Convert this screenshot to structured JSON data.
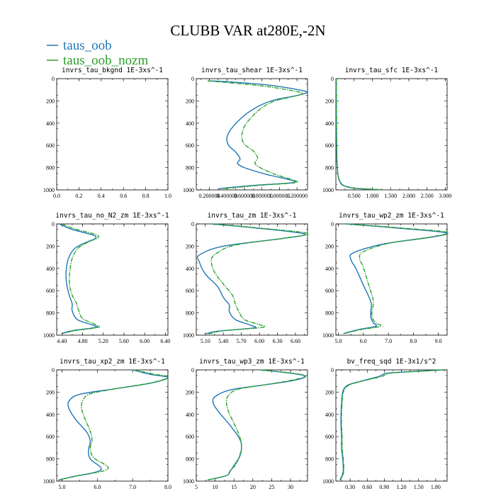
{
  "figure": {
    "title": "CLUBB VAR at280E,-2N",
    "legend": [
      {
        "name": "taus_oob",
        "color": "#1f77b4"
      },
      {
        "name": "taus_oob_nozm",
        "color": "#2ca02c"
      }
    ]
  },
  "chart_data": [
    {
      "type": "line",
      "title": "invrs_tau_bkgnd   1E-3xs^-1",
      "xlim": [
        0.0,
        1.0
      ],
      "ylim": [
        1000,
        0
      ],
      "xticks": [
        0.0,
        0.2,
        0.4,
        0.6,
        0.8,
        1.0
      ],
      "xtick_labels": [
        "0.0",
        "0.2",
        "0.4",
        "0.6",
        "0.8",
        "1.0"
      ],
      "yticks": [
        0,
        200,
        400,
        600,
        800,
        1000
      ],
      "ytick_labels": [
        "0",
        "200",
        "400",
        "600",
        "800",
        "1000"
      ],
      "series": [
        {
          "name": "taus_oob",
          "x": [],
          "y": []
        },
        {
          "name": "taus_oob_nozm",
          "x": [],
          "y": []
        }
      ]
    },
    {
      "type": "line",
      "title": "invrs_tau_shear   1E-3xs^-1",
      "xlim": [
        0.05,
        1.32
      ],
      "ylim": [
        1000,
        0
      ],
      "xticks": [
        0.2,
        0.4,
        0.6,
        0.8,
        1.0,
        1.2
      ],
      "xtick_labels": [
        "0.200000",
        "0.400000",
        "0.600000",
        "0.800000",
        "1.000000",
        "1.200000"
      ],
      "yticks": [
        0,
        200,
        400,
        600,
        800,
        1000
      ],
      "ytick_labels": [
        "0",
        "200",
        "400",
        "600",
        "800",
        "1000"
      ],
      "series": [
        {
          "name": "taus_oob",
          "x": [
            0.2,
            0.45,
            0.9,
            1.28,
            1.3,
            1.15,
            0.95,
            0.78,
            0.6,
            0.45,
            0.4,
            0.42,
            0.5,
            0.55,
            0.52,
            0.6,
            0.85,
            1.12,
            1.15,
            0.7,
            0.3
          ],
          "y": [
            20,
            30,
            60,
            110,
            130,
            160,
            190,
            240,
            330,
            450,
            530,
            600,
            660,
            720,
            760,
            800,
            860,
            910,
            935,
            960,
            990
          ]
        },
        {
          "name": "taus_oob_nozm",
          "x": [
            0.18,
            0.4,
            0.85,
            1.22,
            1.25,
            1.1,
            0.95,
            0.82,
            0.7,
            0.6,
            0.57,
            0.6,
            0.7,
            0.75,
            0.72,
            0.78,
            0.95,
            1.15,
            1.18,
            0.75,
            0.35
          ],
          "y": [
            20,
            35,
            70,
            120,
            140,
            170,
            200,
            250,
            330,
            430,
            520,
            590,
            650,
            710,
            760,
            800,
            860,
            910,
            935,
            960,
            990
          ]
        }
      ]
    },
    {
      "type": "line",
      "title": "invrs_tau_sfc   1E-3xs^-1",
      "xlim": [
        0.0,
        3.05
      ],
      "ylim": [
        1000,
        0
      ],
      "xticks": [
        0.5,
        1.0,
        1.5,
        2.0,
        2.5,
        3.0
      ],
      "xtick_labels": [
        "0.500",
        "1.000",
        "1.500",
        "2.000",
        "2.500",
        "3.000"
      ],
      "yticks": [
        0,
        200,
        400,
        600,
        800,
        1000
      ],
      "ytick_labels": [
        "0",
        "200",
        "400",
        "600",
        "800",
        "1000"
      ],
      "series": [
        {
          "name": "taus_oob",
          "x": [
            0.01,
            0.015,
            0.025,
            0.05,
            0.1,
            0.2,
            0.5,
            1.2
          ],
          "y": [
            0,
            400,
            700,
            850,
            920,
            960,
            985,
            998
          ]
        },
        {
          "name": "taus_oob_nozm",
          "x": [
            0.012,
            0.017,
            0.028,
            0.055,
            0.11,
            0.22,
            0.55,
            1.25
          ],
          "y": [
            0,
            400,
            700,
            850,
            920,
            960,
            985,
            998
          ]
        }
      ]
    },
    {
      "type": "line",
      "title": "invrs_tau_no_N2_zm   1E-3xs^-1",
      "xlim": [
        4.3,
        6.45
      ],
      "ylim": [
        1000,
        0
      ],
      "xticks": [
        4.4,
        4.8,
        5.2,
        5.6,
        6.0,
        6.4
      ],
      "xtick_labels": [
        "4.40",
        "4.80",
        "5.20",
        "5.60",
        "6.00",
        "6.40"
      ],
      "yticks": [
        0,
        200,
        400,
        600,
        800,
        1000
      ],
      "ytick_labels": [
        "0",
        "200",
        "400",
        "600",
        "800",
        "1000"
      ],
      "series": [
        {
          "name": "taus_oob",
          "x": [
            4.35,
            4.6,
            5.0,
            5.05,
            4.9,
            4.65,
            4.52,
            4.48,
            4.5,
            4.55,
            4.6,
            4.6,
            4.7,
            5.0,
            5.05,
            4.6,
            4.4
          ],
          "y": [
            0,
            50,
            100,
            130,
            160,
            220,
            320,
            450,
            560,
            650,
            720,
            780,
            860,
            910,
            930,
            960,
            985
          ]
        },
        {
          "name": "taus_oob_nozm",
          "x": [
            4.4,
            4.65,
            5.05,
            5.1,
            4.95,
            4.72,
            4.6,
            4.55,
            4.55,
            4.6,
            4.68,
            4.72,
            4.8,
            5.05,
            5.1,
            4.65,
            4.42
          ],
          "y": [
            0,
            45,
            95,
            125,
            155,
            215,
            310,
            440,
            550,
            640,
            710,
            770,
            850,
            905,
            930,
            960,
            985
          ]
        }
      ]
    },
    {
      "type": "line",
      "title": "invrs_tau_zm   1E-3xs^-1",
      "xlim": [
        4.95,
        6.8
      ],
      "ylim": [
        1000,
        0
      ],
      "xticks": [
        5.1,
        5.4,
        5.7,
        6.0,
        6.3,
        6.6
      ],
      "xtick_labels": [
        "5.10",
        "5.40",
        "5.70",
        "6.00",
        "6.30",
        "6.60"
      ],
      "yticks": [
        0,
        200,
        400,
        600,
        800,
        1000
      ],
      "ytick_labels": [
        "0",
        "200",
        "400",
        "600",
        "800",
        "1000"
      ],
      "series": [
        {
          "name": "taus_oob",
          "x": [
            5.2,
            6.0,
            6.75,
            6.4,
            5.4,
            5.0,
            5.0,
            5.1,
            5.3,
            5.4,
            5.5,
            5.5,
            5.6,
            5.85,
            5.9,
            5.3,
            5.1
          ],
          "y": [
            0,
            40,
            90,
            130,
            200,
            280,
            340,
            450,
            560,
            660,
            730,
            790,
            860,
            910,
            935,
            965,
            990
          ]
        },
        {
          "name": "taus_oob_nozm",
          "x": [
            5.25,
            6.05,
            6.8,
            6.45,
            5.6,
            5.3,
            5.2,
            5.25,
            5.4,
            5.55,
            5.6,
            5.65,
            5.75,
            6.0,
            6.05,
            5.4,
            5.15
          ],
          "y": [
            0,
            40,
            85,
            125,
            190,
            260,
            320,
            430,
            540,
            640,
            720,
            780,
            860,
            905,
            930,
            960,
            990
          ]
        }
      ]
    },
    {
      "type": "line",
      "title": "invrs_tau_wp2_zm   1E-3xs^-1",
      "xlim": [
        4.9,
        9.35
      ],
      "ylim": [
        1000,
        0
      ],
      "xticks": [
        5.0,
        6.0,
        7.0,
        8.0,
        9.0
      ],
      "xtick_labels": [
        "5.0",
        "6.0",
        "7.0",
        "8.0",
        "9.0"
      ],
      "yticks": [
        0,
        200,
        400,
        600,
        800,
        1000
      ],
      "ytick_labels": [
        "0",
        "200",
        "400",
        "600",
        "800",
        "1000"
      ],
      "series": [
        {
          "name": "taus_oob",
          "x": [
            5.3,
            7.5,
            9.3,
            8.7,
            6.8,
            5.6,
            5.5,
            5.7,
            6.0,
            6.3,
            6.3,
            6.3,
            6.4,
            6.5,
            5.8,
            5.2
          ],
          "y": [
            0,
            40,
            80,
            120,
            180,
            260,
            320,
            400,
            550,
            700,
            780,
            840,
            890,
            920,
            950,
            985
          ]
        },
        {
          "name": "taus_oob_nozm",
          "x": [
            5.35,
            7.6,
            9.35,
            8.75,
            7.0,
            6.0,
            5.85,
            6.0,
            6.2,
            6.4,
            6.35,
            6.35,
            6.5,
            6.7,
            5.9,
            5.25
          ],
          "y": [
            0,
            38,
            75,
            115,
            175,
            250,
            310,
            390,
            540,
            690,
            775,
            840,
            890,
            920,
            950,
            985
          ]
        }
      ]
    },
    {
      "type": "line",
      "title": "invrs_tau_xp2_zm   1E-3xs^-1",
      "xlim": [
        4.85,
        8.0
      ],
      "ylim": [
        1000,
        0
      ],
      "xticks": [
        5.0,
        6.0,
        7.0,
        8.0
      ],
      "xtick_labels": [
        "5.0",
        "6.0",
        "7.0",
        "8.0"
      ],
      "yticks": [
        0,
        200,
        400,
        600,
        800,
        1000
      ],
      "ytick_labels": [
        "0",
        "200",
        "400",
        "600",
        "800",
        "1000"
      ],
      "series": [
        {
          "name": "taus_oob",
          "x": [
            7.0,
            7.5,
            8.0,
            7.5,
            6.5,
            5.5,
            5.2,
            5.2,
            5.4,
            5.7,
            5.8,
            5.75,
            5.8,
            6.1,
            5.3,
            4.9
          ],
          "y": [
            0,
            40,
            70,
            120,
            170,
            220,
            280,
            350,
            450,
            560,
            640,
            720,
            800,
            900,
            960,
            990
          ]
        },
        {
          "name": "taus_oob_nozm",
          "x": [
            7.05,
            7.6,
            8.0,
            7.55,
            6.6,
            5.8,
            5.6,
            5.55,
            5.65,
            5.8,
            5.85,
            5.8,
            5.9,
            6.3,
            5.4,
            4.9
          ],
          "y": [
            0,
            38,
            65,
            115,
            165,
            215,
            270,
            340,
            440,
            550,
            630,
            710,
            790,
            890,
            955,
            990
          ]
        }
      ]
    },
    {
      "type": "line",
      "title": "invrs_tau_wp3_zm   1E-3xs^-1",
      "xlim": [
        5,
        34.5
      ],
      "ylim": [
        1000,
        0
      ],
      "xticks": [
        5,
        10,
        15,
        20,
        25,
        30
      ],
      "xtick_labels": [
        "5",
        "10",
        "15",
        "20",
        "25",
        "30"
      ],
      "yticks": [
        0,
        200,
        400,
        600,
        800,
        1000
      ],
      "ytick_labels": [
        "0",
        "200",
        "400",
        "600",
        "800",
        "1000"
      ],
      "series": [
        {
          "name": "taus_oob",
          "x": [
            22,
            30,
            34,
            30,
            22,
            14,
            10,
            9.5,
            11,
            14,
            16.5,
            17,
            16.5,
            15,
            14,
            13,
            8
          ],
          "y": [
            0,
            30,
            60,
            100,
            140,
            180,
            240,
            300,
            380,
            500,
            620,
            700,
            780,
            860,
            910,
            950,
            990
          ]
        },
        {
          "name": "taus_oob_nozm",
          "x": [
            22,
            30,
            34,
            30,
            23,
            16,
            13.5,
            13,
            13.5,
            15,
            16.5,
            17,
            16.5,
            15.5,
            14,
            13,
            8
          ],
          "y": [
            0,
            28,
            55,
            95,
            135,
            175,
            230,
            290,
            370,
            480,
            600,
            690,
            770,
            850,
            905,
            950,
            990
          ]
        }
      ]
    },
    {
      "type": "line",
      "title": "bv_freq_sqd   1E-3x1/s^2",
      "xlim": [
        0.05,
        2.0
      ],
      "ylim": [
        1000,
        0
      ],
      "xticks": [
        0.3,
        0.6,
        0.9,
        1.2,
        1.5,
        1.8
      ],
      "xtick_labels": [
        "0.30",
        "0.60",
        "0.90",
        "1.20",
        "1.50",
        "1.80"
      ],
      "yticks": [
        0,
        200,
        400,
        600,
        800,
        1000
      ],
      "ytick_labels": [
        "0",
        "200",
        "400",
        "600",
        "800",
        "1000"
      ],
      "series": [
        {
          "name": "taus_oob",
          "x": [
            1.95,
            1.4,
            0.95,
            0.8,
            0.5,
            0.25,
            0.17,
            0.15,
            0.14,
            0.14,
            0.15,
            0.15,
            0.17,
            0.18,
            0.16,
            0.12
          ],
          "y": [
            0,
            15,
            30,
            60,
            100,
            140,
            200,
            300,
            400,
            500,
            600,
            700,
            800,
            900,
            950,
            990
          ]
        },
        {
          "name": "taus_oob_nozm",
          "x": [
            1.95,
            1.45,
            1.0,
            0.85,
            0.52,
            0.27,
            0.18,
            0.16,
            0.15,
            0.15,
            0.16,
            0.16,
            0.18,
            0.19,
            0.17,
            0.13
          ],
          "y": [
            0,
            15,
            30,
            60,
            100,
            140,
            200,
            300,
            400,
            500,
            600,
            700,
            800,
            900,
            950,
            990
          ]
        }
      ]
    }
  ]
}
